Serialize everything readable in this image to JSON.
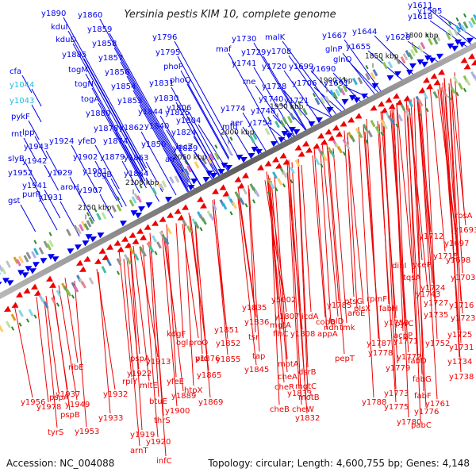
{
  "title": "Yersinia pestis KIM 10, complete genome",
  "footer": {
    "accession": "Accession: NC_004088",
    "info": "Topology: circular; Length: 4,600,755 bp; Genes: 4,148"
  },
  "colors": {
    "forward": "#0000ee",
    "reverse": "#ee0000",
    "backbone": "#808080",
    "highlight_label": "#22bbdd"
  },
  "icons": {
    "forward_gene": "triangle-right",
    "reverse_gene": "triangle-left"
  },
  "kbp_ticks": [
    "1800 kbp",
    "1850 kbp",
    "1900 kbp",
    "1950 kbp",
    "2000 kbp",
    "2050 kbp",
    "2100 kbp",
    "2150 kbp"
  ],
  "forward_labels": [
    "cfa",
    "y1044",
    "y1043",
    "pykF",
    "rnt",
    "lpp",
    "y1943",
    "slyB",
    "y1942",
    "y1952",
    "y1941",
    "purR",
    "gst",
    "y1931",
    "y1890",
    "kduI",
    "kduD",
    "y1885",
    "togM",
    "togN",
    "togA",
    "y1880",
    "y1878",
    "y1860",
    "y1859",
    "y1858",
    "y1857",
    "y1856",
    "y1854",
    "y1853",
    "y1862",
    "y1850",
    "y1844",
    "y1840",
    "y1924",
    "yfeD",
    "y1874",
    "y1902",
    "y1879",
    "y1901",
    "y1929",
    "aroH",
    "y1907",
    "togB",
    "y1863",
    "y1864",
    "y1831",
    "y1830",
    "y1825",
    "alr",
    "y1796",
    "y1795",
    "phoP",
    "phoQ",
    "y1806",
    "y1804",
    "y1824",
    "y1829",
    "lacZ",
    "maf",
    "y1730",
    "y1741",
    "malK",
    "y1729",
    "y1708",
    "y1720",
    "y1699",
    "y1706",
    "rne",
    "y1728",
    "y1740",
    "y1748",
    "y1721",
    "y1774",
    "aer",
    "mfd",
    "y1754",
    "y1667",
    "glnP",
    "glnQ",
    "y1690",
    "y1691",
    "y1644",
    "y1655",
    "y1628",
    "y1611",
    "y1618",
    "y1595"
  ],
  "reverse_labels": [
    "rbsA",
    "y1693",
    "y1697",
    "y1712",
    "y1715",
    "y1698",
    "dinI",
    "yceP",
    "tqsA",
    "y1703",
    "y1724",
    "y1743",
    "ptsG",
    "rpmF",
    "plsX",
    "fabH",
    "y1750",
    "y1727",
    "y1716",
    "y1735",
    "y1723",
    "aroE",
    "ndh",
    "tmk",
    "acpP",
    "pyrC",
    "y1725",
    "y1731",
    "y1734",
    "y1738",
    "y1752",
    "fabD",
    "fabG",
    "fabF",
    "pabC",
    "y1761",
    "y1780",
    "y1776",
    "y1775",
    "y1773",
    "y1779",
    "y1772",
    "y1771",
    "y1778",
    "lolD",
    "y1785",
    "cobB",
    "pepT",
    "y1787",
    "y1788",
    "y5002",
    "icdA",
    "appA",
    "y1807",
    "mgtA",
    "y1808",
    "flhC",
    "dsrB",
    "motA",
    "cheA",
    "y1833",
    "mgtC",
    "cheR",
    "motB",
    "cheW",
    "y1832",
    "cheB",
    "y1835",
    "y1836",
    "tsr",
    "tap",
    "y1845",
    "y1851",
    "y1852",
    "proQ",
    "prc",
    "y1855",
    "y1865",
    "htpX",
    "y1869",
    "y1876",
    "ogl",
    "kdgF",
    "y1889",
    "yfeE",
    "y1900",
    "y1913",
    "y1922",
    "rplY",
    "mltE",
    "btuE",
    "thrS",
    "infC",
    "y1919",
    "y1920",
    "arnT",
    "pspA",
    "y1937",
    "y1932",
    "y1933",
    "ribE",
    "y1949",
    "y1953",
    "tyrS",
    "y1956",
    "y1978",
    "pspA",
    "pspB"
  ]
}
